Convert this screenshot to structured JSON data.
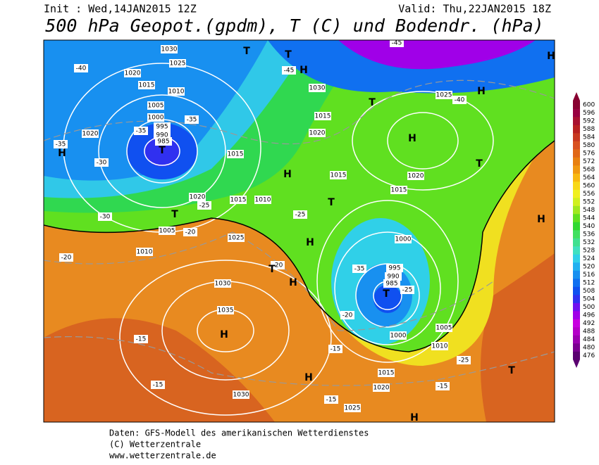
{
  "header": {
    "init": "Init : Wed,14JAN2015 12Z",
    "valid": "Valid: Thu,22JAN2015 18Z",
    "title": "500 hPa Geopot.(gpdm), T (C) und Bodendr. (hPa)"
  },
  "colorbar": {
    "ticks": [
      476,
      480,
      484,
      488,
      492,
      496,
      500,
      504,
      508,
      512,
      516,
      520,
      524,
      528,
      532,
      536,
      540,
      544,
      548,
      552,
      556,
      560,
      564,
      568,
      572,
      576,
      580,
      584,
      588,
      592,
      596,
      600
    ],
    "colors": [
      "#5a0070",
      "#7a0090",
      "#9a00b0",
      "#b400c8",
      "#c800e0",
      "#a000e8",
      "#7010f0",
      "#3030f0",
      "#1050f0",
      "#1070f0",
      "#1890f0",
      "#20b0f0",
      "#30d0e8",
      "#40e0c0",
      "#40e090",
      "#40e060",
      "#30d830",
      "#60e020",
      "#a0e820",
      "#d0f020",
      "#f0f020",
      "#f8d818",
      "#f8b810",
      "#f09810",
      "#e88010",
      "#e06818",
      "#d85020",
      "#c83820",
      "#b82020",
      "#a81030",
      "#980040",
      "#880030"
    ]
  },
  "map": {
    "pressure_labels": [
      "1030",
      "1025",
      "1020",
      "1015",
      "1010",
      "1005",
      "1000",
      "995",
      "990",
      "985",
      "1020",
      "1015",
      "1010",
      "1030",
      "1035",
      "1030",
      "1025",
      "1020",
      "1015",
      "1010",
      "1005",
      "1000",
      "995",
      "990",
      "985",
      "1000",
      "1005",
      "1010",
      "1015",
      "1020",
      "1025",
      "1030",
      "1025",
      "1020",
      "1015",
      "1015",
      "1020",
      "1015"
    ],
    "temp_labels": [
      "-40",
      "-35",
      "-30",
      "-35",
      "-30",
      "-25",
      "-20",
      "-15",
      "-15",
      "-20",
      "-25",
      "-35",
      "-40",
      "-45",
      "-45",
      "-35",
      "-25",
      "-20",
      "-15",
      "-15",
      "-25",
      "-15",
      "-20"
    ],
    "centers": [
      "H",
      "T",
      "T",
      "H",
      "T",
      "H",
      "T",
      "H",
      "T",
      "H",
      "H",
      "T",
      "H",
      "T",
      "H",
      "T",
      "H",
      "H",
      "T",
      "H",
      "H",
      "T"
    ]
  },
  "footer": [
    "Daten: GFS-Modell des amerikanischen Wetterdienstes",
    "(C) Wetterzentrale",
    "www.wetterzentrale.de"
  ]
}
